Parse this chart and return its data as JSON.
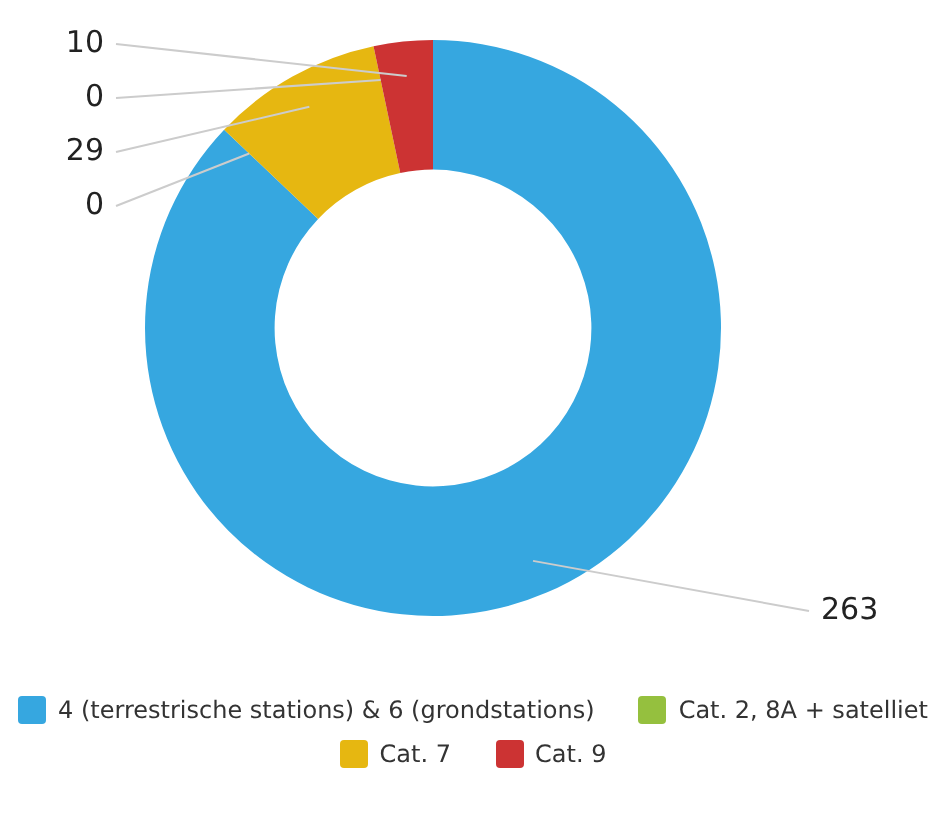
{
  "chart_data": {
    "type": "donut",
    "categories": [
      "4 (terrestrische stations) & 6 (grondstations)",
      "Cat. 2, 8A + satelliet",
      "Cat. 7",
      null,
      "Cat. 9"
    ],
    "values": [
      263,
      0,
      29,
      0,
      10
    ],
    "colors": [
      "#36a7e0",
      "#95c03e",
      "#e6b711",
      "#999999",
      "#cc3333"
    ],
    "value_labels": [
      "263",
      "0",
      "29",
      "0",
      "10"
    ],
    "legend": "bottom"
  }
}
